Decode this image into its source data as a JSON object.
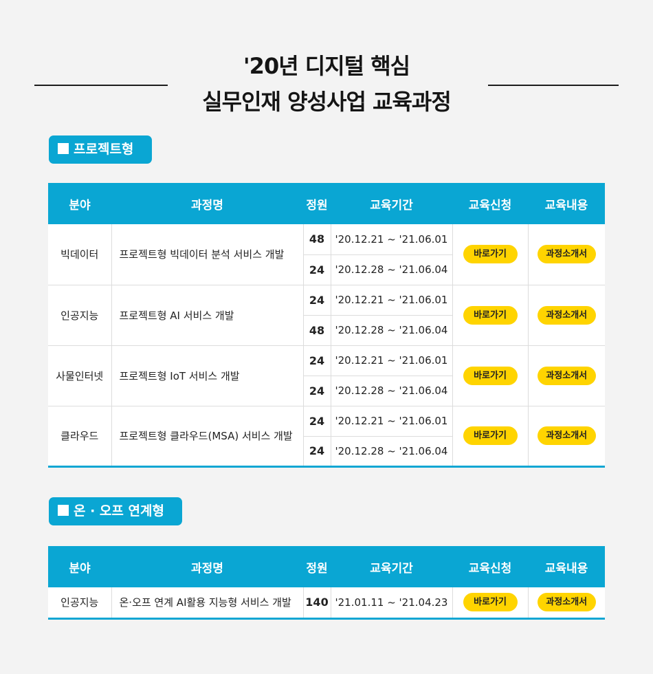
{
  "header": {
    "line1": "'20년 디지털 핵심",
    "line2": "실무인재 양성사업 교육과정"
  },
  "table_headers": [
    "분야",
    "과정명",
    "정원",
    "교육기간",
    "교육신청",
    "교육내용"
  ],
  "sections": [
    {
      "tag": "프로젝트형",
      "courses": [
        {
          "field": "빅데이터",
          "name": "프로젝트형 빅데이터 분석 서비스 개발",
          "sessions": [
            {
              "capacity": "48",
              "period": "'20.12.21 ~ '21.06.01"
            },
            {
              "capacity": "24",
              "period": "'20.12.28 ~ '21.06.04"
            }
          ],
          "apply": "바로가기",
          "info": "과정소개서"
        },
        {
          "field": "인공지능",
          "name": "프로젝트형 AI 서비스 개발",
          "sessions": [
            {
              "capacity": "24",
              "period": "'20.12.21 ~ '21.06.01"
            },
            {
              "capacity": "48",
              "period": "'20.12.28 ~ '21.06.04"
            }
          ],
          "apply": "바로가기",
          "info": "과정소개서"
        },
        {
          "field": "사물인터넷",
          "name": "프로젝트형 IoT 서비스 개발",
          "sessions": [
            {
              "capacity": "24",
              "period": "'20.12.21 ~ '21.06.01"
            },
            {
              "capacity": "24",
              "period": "'20.12.28 ~ '21.06.04"
            }
          ],
          "apply": "바로가기",
          "info": "과정소개서"
        },
        {
          "field": "클라우드",
          "name": "프로젝트형 클라우드(MSA) 서비스 개발",
          "sessions": [
            {
              "capacity": "24",
              "period": "'20.12.21 ~ '21.06.01"
            },
            {
              "capacity": "24",
              "period": "'20.12.28 ~ '21.06.04"
            }
          ],
          "apply": "바로가기",
          "info": "과정소개서"
        }
      ]
    },
    {
      "tag": "온 · 오프 연계형",
      "courses": [
        {
          "field": "인공지능",
          "name": "온·오프 연계 AI활용 지능형 서비스 개발",
          "sessions": [
            {
              "capacity": "140",
              "period": "'21.01.11 ~ '21.04.23"
            }
          ],
          "apply": "바로가기",
          "info": "과정소개서"
        }
      ]
    }
  ],
  "colors": {
    "accent": "#0aa6d3",
    "button": "#ffd400",
    "background": "#f3f3f3"
  }
}
